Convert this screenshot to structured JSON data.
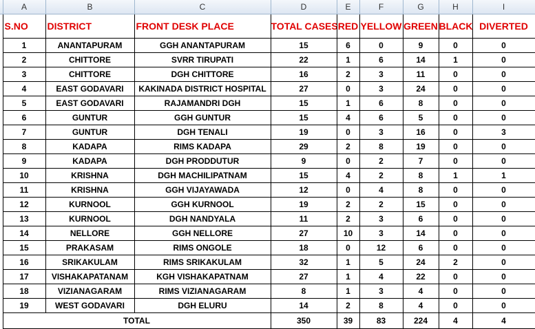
{
  "column_letters": [
    "A",
    "B",
    "C",
    "D",
    "E",
    "F",
    "G",
    "H",
    "I"
  ],
  "headers": {
    "sno": "S.NO",
    "district": "DISTRICT",
    "place": "FRONT DESK PLACE",
    "total": "TOTAL CASES",
    "red": "RED",
    "yellow": "YELLOW",
    "green": "GREEN",
    "black": "BLACK",
    "diverted": "DIVERTED"
  },
  "rows": [
    {
      "sno": "1",
      "district": "ANANTAPURAM",
      "place": "GGH ANANTAPURAM",
      "total": "15",
      "red": "6",
      "yellow": "0",
      "green": "9",
      "black": "0",
      "diverted": "0"
    },
    {
      "sno": "2",
      "district": "CHITTORE",
      "place": "SVRR TIRUPATI",
      "total": "22",
      "red": "1",
      "yellow": "6",
      "green": "14",
      "black": "1",
      "diverted": "0"
    },
    {
      "sno": "3",
      "district": "CHITTORE",
      "place": "DGH CHITTORE",
      "total": "16",
      "red": "2",
      "yellow": "3",
      "green": "11",
      "black": "0",
      "diverted": "0"
    },
    {
      "sno": "4",
      "district": "EAST GODAVARI",
      "place": "KAKINADA DISTRICT HOSPITAL",
      "total": "27",
      "red": "0",
      "yellow": "3",
      "green": "24",
      "black": "0",
      "diverted": "0"
    },
    {
      "sno": "5",
      "district": "EAST GODAVARI",
      "place": "RAJAMANDRI DGH",
      "total": "15",
      "red": "1",
      "yellow": "6",
      "green": "8",
      "black": "0",
      "diverted": "0"
    },
    {
      "sno": "6",
      "district": "GUNTUR",
      "place": "GGH GUNTUR",
      "total": "15",
      "red": "4",
      "yellow": "6",
      "green": "5",
      "black": "0",
      "diverted": "0"
    },
    {
      "sno": "7",
      "district": "GUNTUR",
      "place": "DGH TENALI",
      "total": "19",
      "red": "0",
      "yellow": "3",
      "green": "16",
      "black": "0",
      "diverted": "3"
    },
    {
      "sno": "8",
      "district": "KADAPA",
      "place": "RIMS KADAPA",
      "total": "29",
      "red": "2",
      "yellow": "8",
      "green": "19",
      "black": "0",
      "diverted": "0"
    },
    {
      "sno": "9",
      "district": "KADAPA",
      "place": "DGH PRODDUTUR",
      "total": "9",
      "red": "0",
      "yellow": "2",
      "green": "7",
      "black": "0",
      "diverted": "0"
    },
    {
      "sno": "10",
      "district": "KRISHNA",
      "place": "DGH MACHILIPATNAM",
      "total": "15",
      "red": "4",
      "yellow": "2",
      "green": "8",
      "black": "1",
      "diverted": "1"
    },
    {
      "sno": "11",
      "district": "KRISHNA",
      "place": "GGH VIJAYAWADA",
      "total": "12",
      "red": "0",
      "yellow": "4",
      "green": "8",
      "black": "0",
      "diverted": "0"
    },
    {
      "sno": "12",
      "district": "KURNOOL",
      "place": "GGH KURNOOL",
      "total": "19",
      "red": "2",
      "yellow": "2",
      "green": "15",
      "black": "0",
      "diverted": "0"
    },
    {
      "sno": "13",
      "district": "KURNOOL",
      "place": "DGH NANDYALA",
      "total": "11",
      "red": "2",
      "yellow": "3",
      "green": "6",
      "black": "0",
      "diverted": "0"
    },
    {
      "sno": "14",
      "district": "NELLORE",
      "place": "GGH NELLORE",
      "total": "27",
      "red": "10",
      "yellow": "3",
      "green": "14",
      "black": "0",
      "diverted": "0"
    },
    {
      "sno": "15",
      "district": "PRAKASAM",
      "place": "RIMS ONGOLE",
      "total": "18",
      "red": "0",
      "yellow": "12",
      "green": "6",
      "black": "0",
      "diverted": "0"
    },
    {
      "sno": "16",
      "district": "SRIKAKULAM",
      "place": "RIMS SRIKAKULAM",
      "total": "32",
      "red": "1",
      "yellow": "5",
      "green": "24",
      "black": "2",
      "diverted": "0"
    },
    {
      "sno": "17",
      "district": "VISHAKAPATANAM",
      "place": "KGH VISHAKAPATNAM",
      "total": "27",
      "red": "1",
      "yellow": "4",
      "green": "22",
      "black": "0",
      "diverted": "0"
    },
    {
      "sno": "18",
      "district": "VIZIANAGARAM",
      "place": "RIMS VIZIANAGARAM",
      "total": "8",
      "red": "1",
      "yellow": "3",
      "green": "4",
      "black": "0",
      "diverted": "0"
    },
    {
      "sno": "19",
      "district": "WEST GODAVARI",
      "place": "DGH ELURU",
      "total": "14",
      "red": "2",
      "yellow": "8",
      "green": "4",
      "black": "0",
      "diverted": "0"
    }
  ],
  "total_row": {
    "label": "TOTAL",
    "total": "350",
    "red": "39",
    "yellow": "83",
    "green": "224",
    "black": "4",
    "diverted": "4"
  }
}
